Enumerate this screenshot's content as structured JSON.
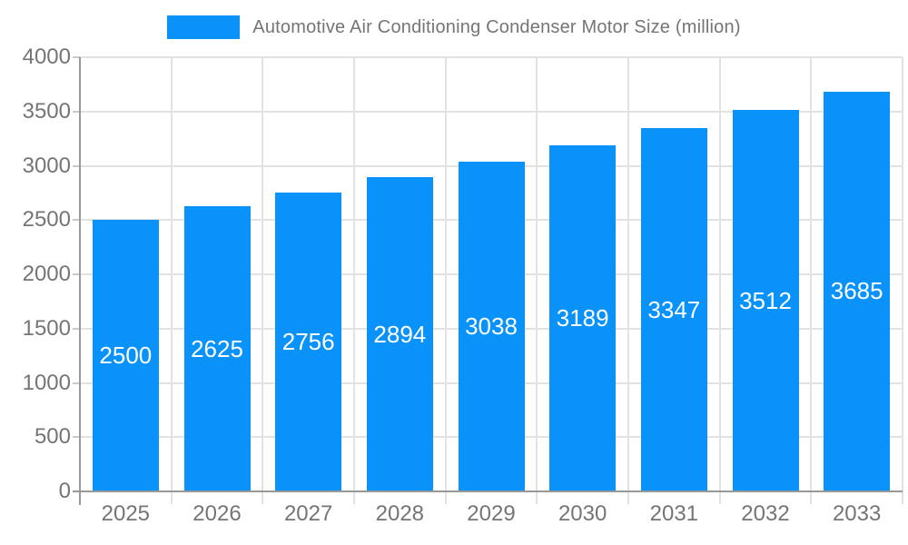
{
  "chart_data": {
    "type": "bar",
    "title": "Automotive Air Conditioning Condenser Motor Size (million)",
    "legend_position": "top",
    "categories": [
      "2025",
      "2026",
      "2027",
      "2028",
      "2029",
      "2030",
      "2031",
      "2032",
      "2033"
    ],
    "values": [
      2500,
      2625,
      2756,
      2894,
      3038,
      3189,
      3347,
      3512,
      3685
    ],
    "xlabel": "",
    "ylabel": "",
    "ylim": [
      0,
      4000
    ],
    "yticks": [
      0,
      500,
      1000,
      1500,
      2000,
      2500,
      3000,
      3500,
      4000
    ],
    "grid": true,
    "colors": {
      "bar": "#0892fa",
      "bar_label": "#ffffff",
      "axis_text": "#757575",
      "grid": "#e2e2e2",
      "axis_line": "#999999",
      "tick": "#c9c9c9",
      "background": "#ffffff"
    }
  }
}
